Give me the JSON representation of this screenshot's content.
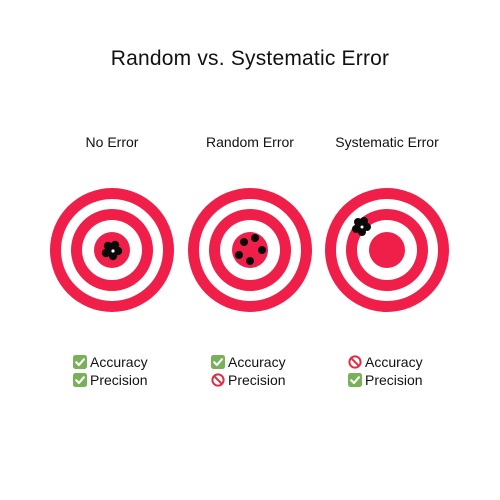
{
  "title": "Random vs. Systematic Error",
  "colors": {
    "ring_red": "#f01f4a",
    "ring_white": "#ffffff",
    "hit": "#0a0a0a",
    "check_green": "#78b159",
    "no_red": "#dd2e44"
  },
  "panels": [
    {
      "label": "No Error",
      "shot_pattern": "tight cluster at center",
      "items": [
        {
          "label": "Accuracy",
          "status": "check",
          "icon": "check-mark-icon"
        },
        {
          "label": "Precision",
          "status": "check",
          "icon": "check-mark-icon"
        }
      ]
    },
    {
      "label": "Random Error",
      "shot_pattern": "scattered around center",
      "items": [
        {
          "label": "Accuracy",
          "status": "check",
          "icon": "check-mark-icon"
        },
        {
          "label": "Precision",
          "status": "no",
          "icon": "prohibited-icon"
        }
      ]
    },
    {
      "label": "Systematic Error",
      "shot_pattern": "tight cluster off-center (upper-left)",
      "items": [
        {
          "label": "Accuracy",
          "status": "no",
          "icon": "prohibited-icon"
        },
        {
          "label": "Precision",
          "status": "check",
          "icon": "check-mark-icon"
        }
      ]
    }
  ]
}
